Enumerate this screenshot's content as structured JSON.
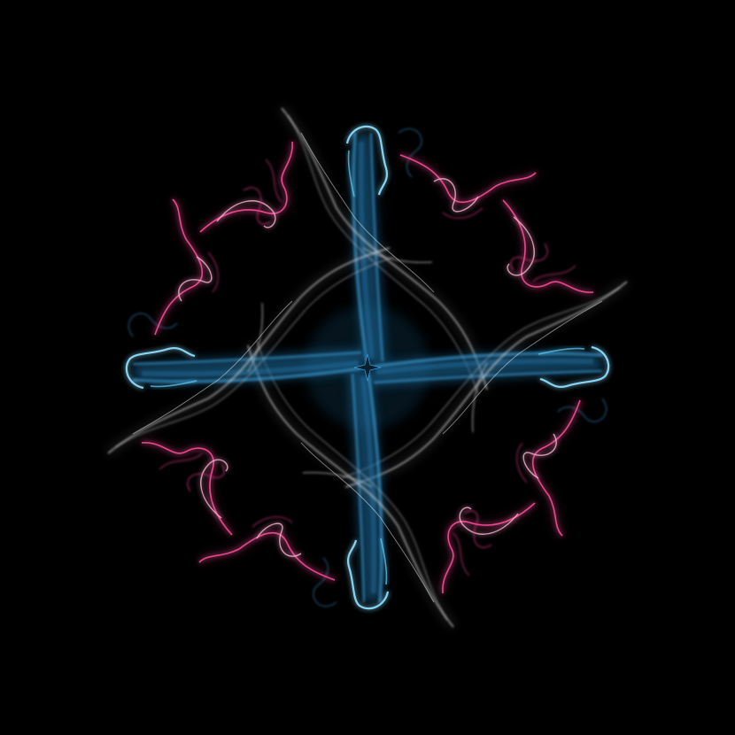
{
  "artwork": {
    "subject": "symmetric-smoke-light-painting",
    "symmetry": "four-fold-rotational",
    "arms": 4,
    "pink_wisps": 8,
    "colors": {
      "background": "#000000",
      "blue": "#3fa9e6",
      "blue_bright": "#8fe0ff",
      "white": "#e8e8ea",
      "pink": "#ff4f9b",
      "pink_bright": "#ffb0d2"
    }
  }
}
